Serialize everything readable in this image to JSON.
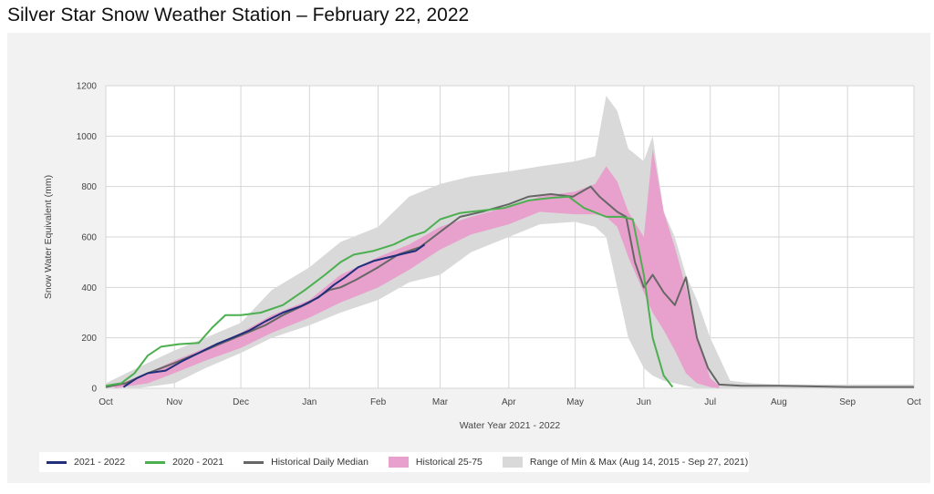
{
  "title": "Silver Star Snow Weather Station – February 22, 2022",
  "chart_data": {
    "type": "line",
    "xlabel": "Water Year 2021 - 2022",
    "ylabel": "Snow Water Equivalent (mm)",
    "ylim": [
      0,
      1200
    ],
    "yticks": [
      0,
      200,
      400,
      600,
      800,
      1000,
      1200
    ],
    "xlim": [
      "2021-10-01",
      "2022-10-01"
    ],
    "xticks": [
      {
        "date": "2021-10-01",
        "label": "Oct"
      },
      {
        "date": "2021-11-01",
        "label": "Nov"
      },
      {
        "date": "2021-12-01",
        "label": "Dec"
      },
      {
        "date": "2022-01-01",
        "label": "Jan"
      },
      {
        "date": "2022-02-01",
        "label": "Feb"
      },
      {
        "date": "2022-03-01",
        "label": "Mar"
      },
      {
        "date": "2022-04-01",
        "label": "Apr"
      },
      {
        "date": "2022-05-01",
        "label": "May"
      },
      {
        "date": "2022-06-01",
        "label": "Jun"
      },
      {
        "date": "2022-07-01",
        "label": "Jul"
      },
      {
        "date": "2022-08-01",
        "label": "Aug"
      },
      {
        "date": "2022-09-01",
        "label": "Sep"
      },
      {
        "date": "2022-10-01",
        "label": "Oct"
      }
    ],
    "grid": true,
    "legend_position": "bottom-left",
    "series": [
      {
        "name": "2021 - 2022",
        "kind": "line",
        "color": "#1f2f7a",
        "x": [
          "2021-10-09",
          "2021-10-15",
          "2021-10-20",
          "2021-10-28",
          "2021-11-05",
          "2021-11-12",
          "2021-11-20",
          "2021-11-27",
          "2021-12-05",
          "2021-12-12",
          "2021-12-20",
          "2021-12-28",
          "2022-01-05",
          "2022-01-12",
          "2022-01-17",
          "2022-01-23",
          "2022-01-30",
          "2022-02-06",
          "2022-02-13",
          "2022-02-18",
          "2022-02-22"
        ],
        "y": [
          5,
          40,
          60,
          70,
          110,
          140,
          175,
          200,
          230,
          265,
          300,
          325,
          360,
          410,
          440,
          480,
          505,
          520,
          535,
          545,
          570
        ]
      },
      {
        "name": "2020 - 2021",
        "kind": "line",
        "color": "#4caf50",
        "x": [
          "2021-10-01",
          "2021-10-08",
          "2021-10-14",
          "2021-10-20",
          "2021-10-26",
          "2021-11-03",
          "2021-11-12",
          "2021-11-18",
          "2021-11-24",
          "2021-12-01",
          "2021-12-10",
          "2021-12-20",
          "2021-12-30",
          "2022-01-08",
          "2022-01-15",
          "2022-01-21",
          "2022-01-30",
          "2022-02-08",
          "2022-02-15",
          "2022-02-22",
          "2022-03-01",
          "2022-03-10",
          "2022-03-20",
          "2022-03-30",
          "2022-04-10",
          "2022-04-20",
          "2022-04-28",
          "2022-05-05",
          "2022-05-15",
          "2022-05-22",
          "2022-05-27",
          "2022-06-01",
          "2022-06-05",
          "2022-06-10",
          "2022-06-14"
        ],
        "y": [
          10,
          20,
          60,
          130,
          165,
          175,
          180,
          240,
          290,
          290,
          300,
          330,
          390,
          450,
          500,
          530,
          545,
          570,
          600,
          620,
          670,
          695,
          705,
          715,
          745,
          755,
          760,
          715,
          680,
          680,
          670,
          450,
          200,
          50,
          5
        ]
      },
      {
        "name": "Historical Daily Median",
        "kind": "line",
        "color": "#666666",
        "x": [
          "2021-10-01",
          "2021-10-10",
          "2021-10-20",
          "2021-11-01",
          "2021-11-12",
          "2021-11-20",
          "2021-12-01",
          "2021-12-12",
          "2021-12-20",
          "2022-01-01",
          "2022-01-10",
          "2022-01-15",
          "2022-01-22",
          "2022-02-01",
          "2022-02-10",
          "2022-02-20",
          "2022-03-01",
          "2022-03-10",
          "2022-03-20",
          "2022-04-01",
          "2022-04-10",
          "2022-04-20",
          "2022-04-30",
          "2022-05-08",
          "2022-05-12",
          "2022-05-20",
          "2022-05-24",
          "2022-05-28",
          "2022-06-01",
          "2022-06-05",
          "2022-06-10",
          "2022-06-15",
          "2022-06-20",
          "2022-06-25",
          "2022-06-30",
          "2022-07-05",
          "2022-07-15",
          "2022-08-01",
          "2022-09-01",
          "2022-10-01"
        ],
        "y": [
          5,
          20,
          60,
          100,
          140,
          170,
          210,
          250,
          290,
          340,
          390,
          400,
          430,
          480,
          530,
          560,
          620,
          680,
          700,
          730,
          760,
          770,
          760,
          800,
          760,
          700,
          680,
          500,
          400,
          450,
          380,
          330,
          440,
          200,
          80,
          15,
          10,
          10,
          5,
          5
        ]
      },
      {
        "name": "Historical 25-75",
        "kind": "band",
        "color": "#e8a0cc",
        "x": [
          "2021-10-05",
          "2021-10-20",
          "2021-11-01",
          "2021-11-15",
          "2021-12-01",
          "2021-12-15",
          "2022-01-01",
          "2022-01-15",
          "2022-02-01",
          "2022-02-15",
          "2022-03-01",
          "2022-03-15",
          "2022-04-01",
          "2022-04-15",
          "2022-05-01",
          "2022-05-10",
          "2022-05-15",
          "2022-05-20",
          "2022-05-25",
          "2022-06-01",
          "2022-06-05",
          "2022-06-10",
          "2022-06-15",
          "2022-06-20",
          "2022-06-25",
          "2022-07-01",
          "2022-07-05"
        ],
        "low": [
          0,
          20,
          60,
          110,
          160,
          220,
          280,
          340,
          400,
          470,
          550,
          610,
          650,
          700,
          690,
          690,
          680,
          640,
          520,
          380,
          300,
          230,
          150,
          60,
          20,
          5,
          0
        ],
        "high": [
          10,
          60,
          110,
          160,
          220,
          290,
          350,
          450,
          520,
          570,
          640,
          680,
          720,
          760,
          780,
          810,
          880,
          820,
          700,
          600,
          950,
          700,
          560,
          400,
          200,
          40,
          10
        ]
      },
      {
        "name": "Range of Min & Max (Aug 14, 2015 - Sep 27, 2021)",
        "kind": "band",
        "color": "#d9d9d9",
        "x": [
          "2021-10-01",
          "2021-10-15",
          "2021-11-01",
          "2021-11-15",
          "2021-12-01",
          "2021-12-15",
          "2022-01-01",
          "2022-01-15",
          "2022-02-01",
          "2022-02-15",
          "2022-03-01",
          "2022-03-15",
          "2022-04-01",
          "2022-04-15",
          "2022-05-01",
          "2022-05-10",
          "2022-05-15",
          "2022-05-20",
          "2022-05-25",
          "2022-06-01",
          "2022-06-05",
          "2022-06-10",
          "2022-06-15",
          "2022-06-20",
          "2022-06-25",
          "2022-07-01",
          "2022-07-10",
          "2022-07-20",
          "2022-08-01",
          "2022-09-01",
          "2022-10-01"
        ],
        "low": [
          0,
          0,
          20,
          80,
          140,
          200,
          250,
          300,
          350,
          420,
          450,
          540,
          600,
          650,
          660,
          640,
          600,
          400,
          200,
          80,
          50,
          30,
          20,
          10,
          0,
          0,
          0,
          0,
          0,
          0,
          0
        ],
        "high": [
          20,
          80,
          150,
          200,
          260,
          390,
          480,
          580,
          640,
          760,
          810,
          840,
          860,
          880,
          900,
          920,
          1160,
          1100,
          950,
          900,
          1000,
          700,
          600,
          450,
          350,
          200,
          30,
          20,
          15,
          15,
          15
        ]
      }
    ]
  }
}
